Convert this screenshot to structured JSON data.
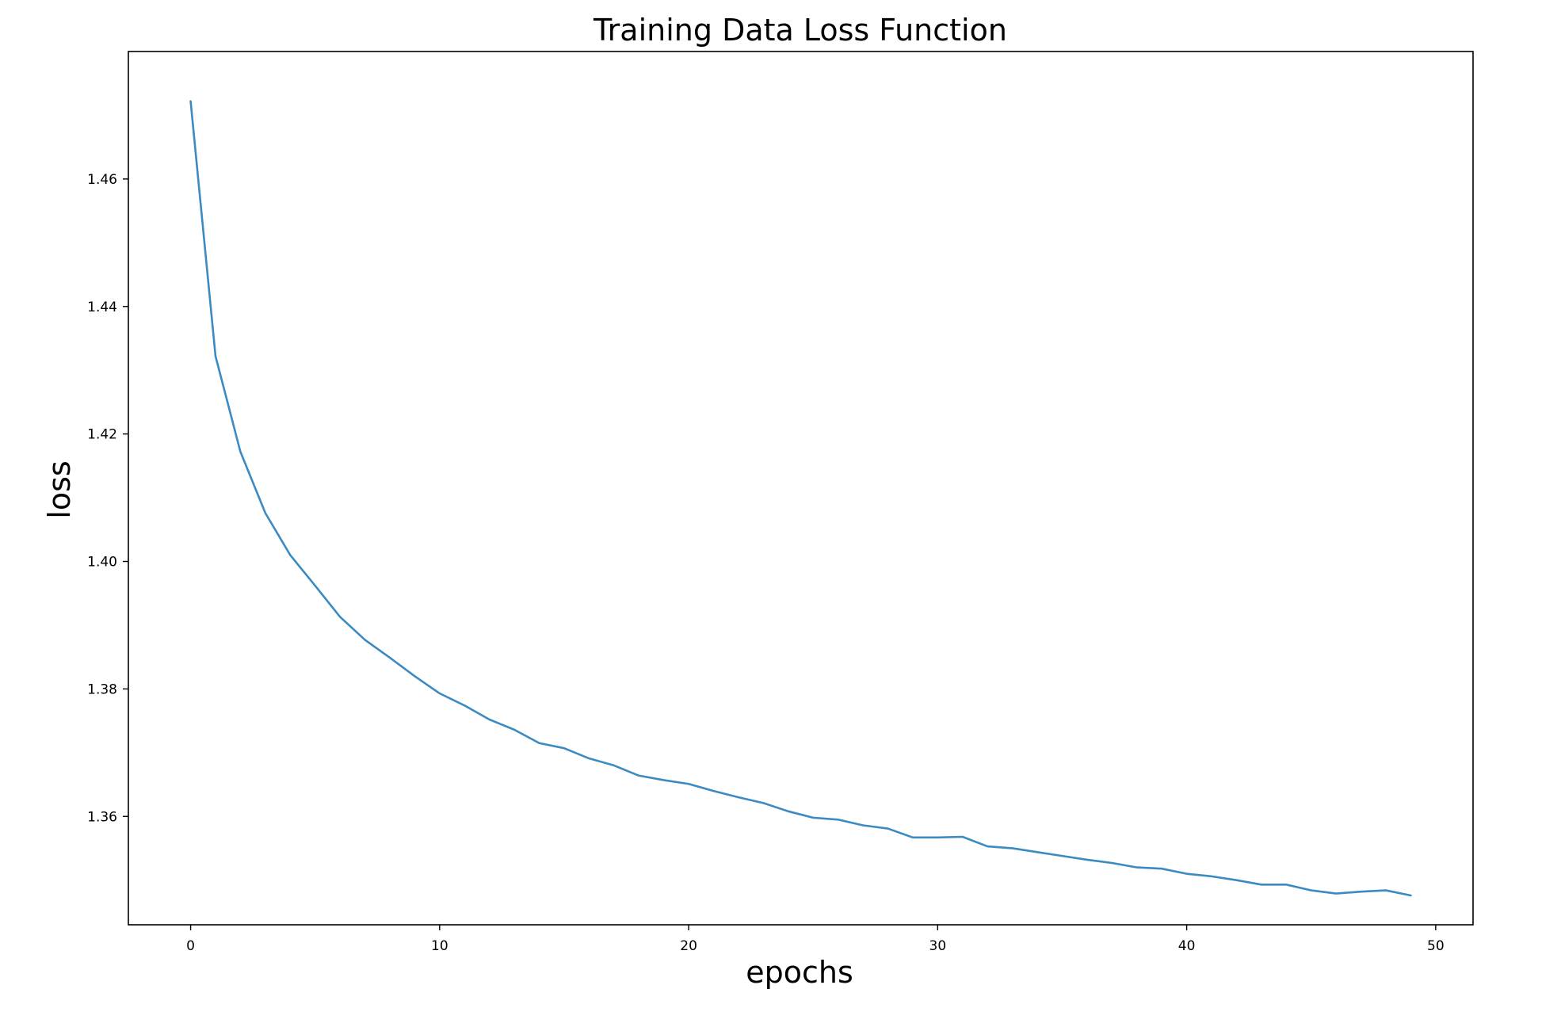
{
  "chart_data": {
    "type": "line",
    "title": "Training Data Loss Function",
    "xlabel": "epochs",
    "ylabel": "loss",
    "xlim": [
      -2.5,
      51.5
    ],
    "ylim": [
      1.343,
      1.48
    ],
    "xticks": [
      0,
      10,
      20,
      30,
      40,
      50
    ],
    "yticks": [
      1.36,
      1.38,
      1.4,
      1.42,
      1.44,
      1.46
    ],
    "xtick_labels": [
      "0",
      "10",
      "20",
      "30",
      "40",
      "50"
    ],
    "ytick_labels": [
      "1.36",
      "1.38",
      "1.40",
      "1.42",
      "1.44",
      "1.46"
    ],
    "grid": false,
    "line_color": "#3b8bc2",
    "series": [
      {
        "x": [
          0,
          1,
          2,
          3,
          4,
          5,
          6,
          7,
          8,
          9,
          10,
          11,
          12,
          13,
          14,
          15,
          16,
          17,
          18,
          19,
          20,
          21,
          22,
          23,
          24,
          25,
          26,
          27,
          28,
          29,
          30,
          31,
          32,
          33,
          34,
          35,
          36,
          37,
          38,
          39,
          40,
          41,
          42,
          43,
          44,
          45,
          46,
          47,
          48,
          49
        ],
        "values": [
          1.4722,
          1.4322,
          1.4172,
          1.4076,
          1.401,
          1.3962,
          1.3913,
          1.3877,
          1.3849,
          1.382,
          1.3793,
          1.3774,
          1.3752,
          1.3736,
          1.3715,
          1.3707,
          1.3691,
          1.368,
          1.3664,
          1.3657,
          1.3651,
          1.364,
          1.363,
          1.3621,
          1.3608,
          1.3598,
          1.3595,
          1.3586,
          1.3581,
          1.3567,
          1.3567,
          1.3568,
          1.3553,
          1.355,
          1.3544,
          1.3538,
          1.3532,
          1.3527,
          1.352,
          1.3518,
          1.351,
          1.3506,
          1.35,
          1.3493,
          1.3493,
          1.3484,
          1.3479,
          1.3482,
          1.3484,
          1.3476
        ]
      }
    ]
  }
}
